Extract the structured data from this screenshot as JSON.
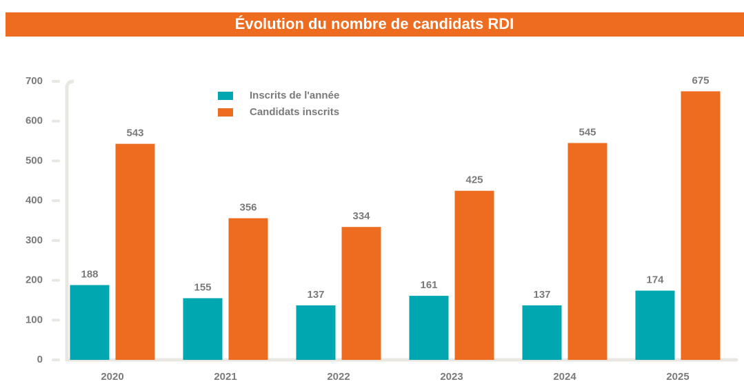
{
  "chart_data": {
    "type": "bar",
    "title": "Évolution du nombre de candidats RDI",
    "categories": [
      "2020",
      "2021",
      "2022",
      "2023",
      "2024",
      "2025"
    ],
    "series": [
      {
        "name": "Inscrits de l'année",
        "color": "#00a7b1",
        "values": [
          188,
          155,
          137,
          161,
          137,
          174
        ]
      },
      {
        "name": "Candidats inscrits",
        "color": "#ee6c1f",
        "values": [
          543,
          356,
          334,
          425,
          545,
          675
        ]
      }
    ],
    "ylim": [
      0,
      700
    ],
    "yticks": [
      0,
      100,
      200,
      300,
      400,
      500,
      600,
      700
    ]
  }
}
